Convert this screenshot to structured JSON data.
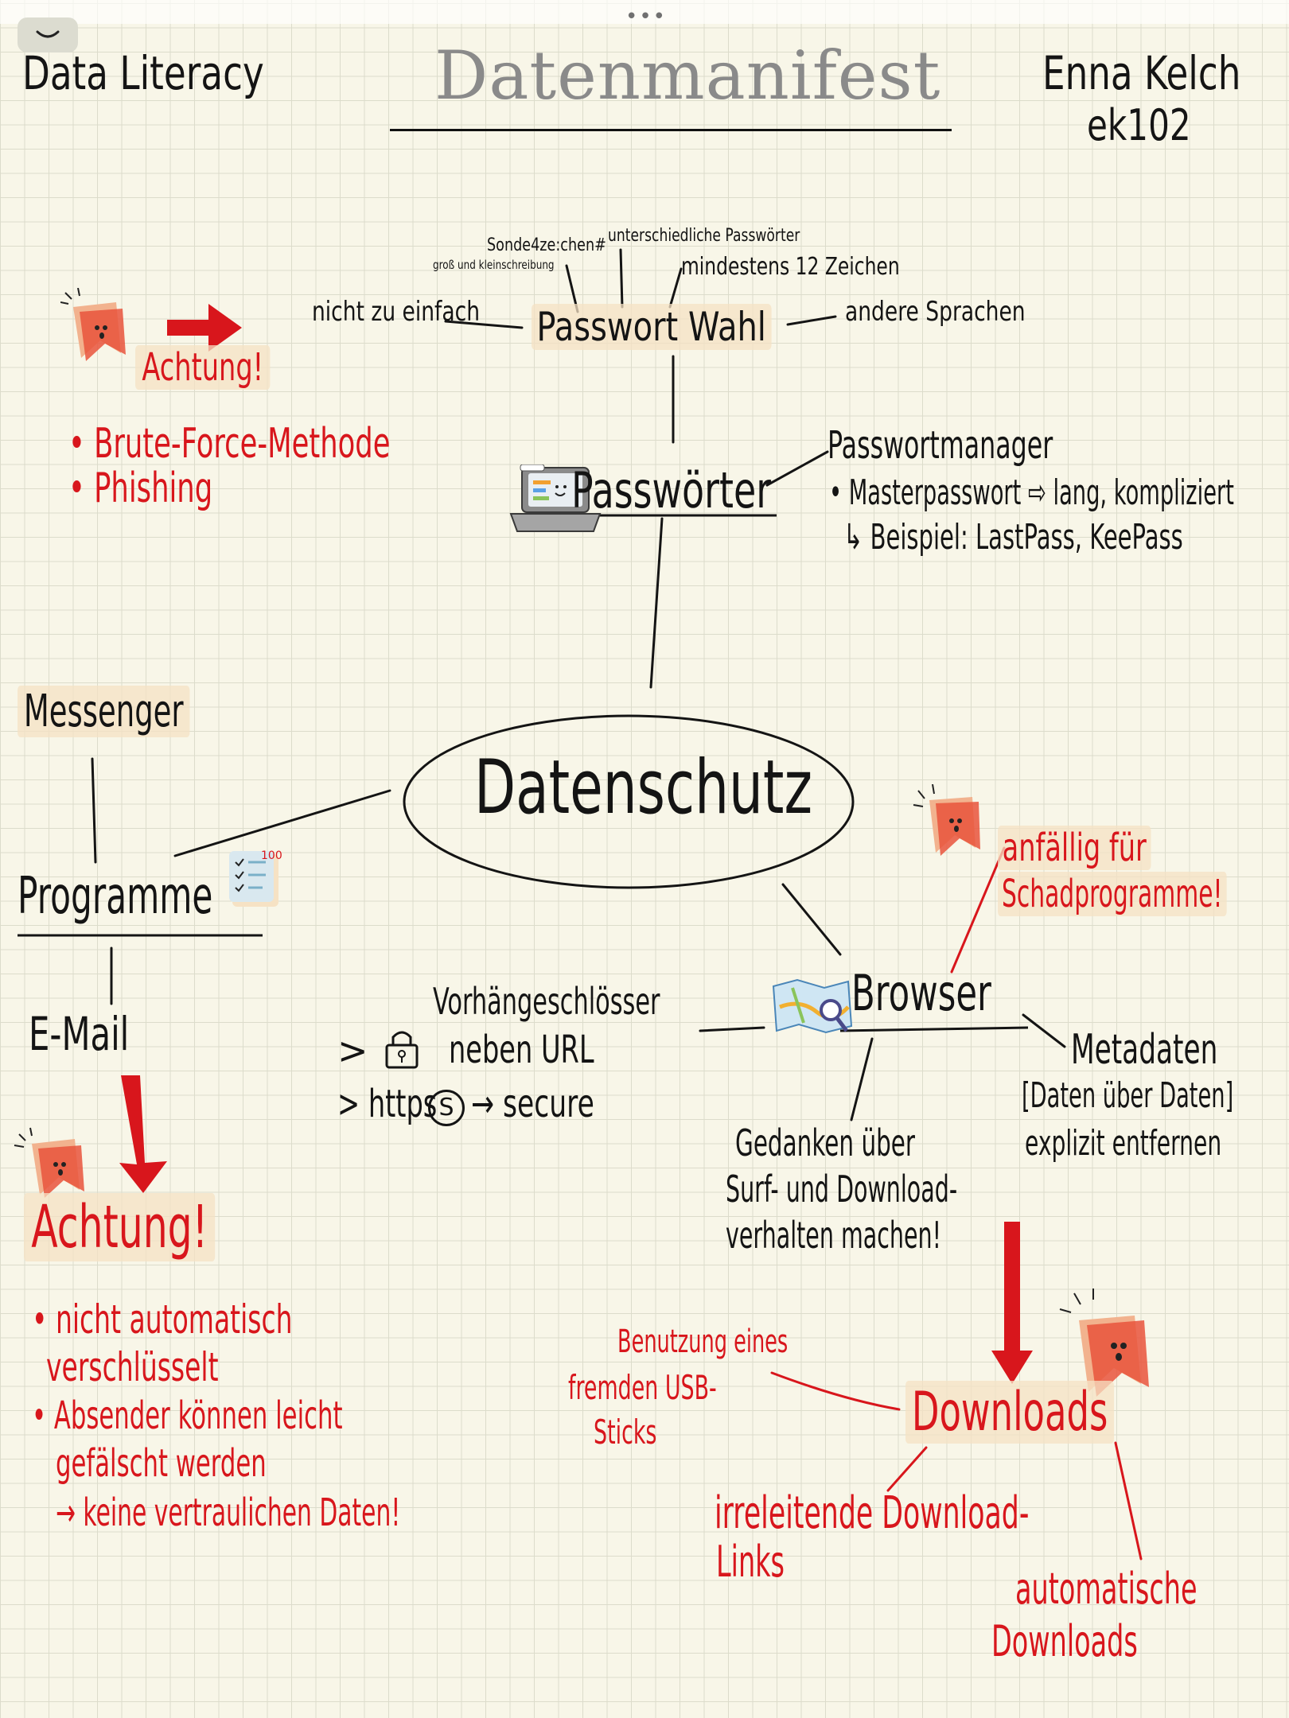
{
  "header": {
    "left": "Data Literacy",
    "title": "Datenmanifest",
    "author_name": "Enna Kelch",
    "author_id": "ek102"
  },
  "center": "Datenschutz",
  "passwort_wahl": {
    "label": "Passwort Wahl",
    "tips": [
      "Sonde4ze:chen#",
      "groß und kleinschreibung",
      "unterschiedliche Passwörter",
      "mindestens 12 Zeichen",
      "nicht zu einfach",
      "andere Sprachen"
    ]
  },
  "passwoerter": {
    "label": "Passwörter",
    "manager": "Passwortmanager",
    "master": "• Masterpasswort ⇨ lang, kompliziert",
    "example": "↳ Beispiel: LastPass, KeePass"
  },
  "warning_top": {
    "title": "Achtung!",
    "items": [
      "• Brute-Force-Methode",
      "• Phishing"
    ]
  },
  "programme": {
    "label": "Programme",
    "messenger": "Messenger",
    "email": "E-Mail"
  },
  "warning_email": {
    "title": "Achtung!",
    "items": [
      "• nicht automatisch",
      "verschlüsselt",
      "• Absender können leicht",
      "gefälscht werden",
      "→ keine vertraulichen Daten!"
    ]
  },
  "browser": {
    "label": "Browser",
    "warning": [
      "anfällig für",
      "Schadprogramme!"
    ],
    "locks": "Vorhängeschlösser",
    "lock_line": "neben URL",
    "https_prefix": "> https",
    "https_s": "S",
    "https_suffix": "→ secure",
    "metadata": "Metadaten",
    "metadata_def": "[Daten über Daten]",
    "metadata_action": "explizit entfernen",
    "thoughts": [
      "Gedanken über",
      "Surf- und Download-",
      "verhalten machen!"
    ]
  },
  "downloads": {
    "label": "Downloads",
    "usb": [
      "Benutzung eines",
      "fremden USB-",
      "Sticks"
    ],
    "misleading": [
      "irreleitende Download-",
      "Links"
    ],
    "automatic": [
      "automatische",
      "Downloads"
    ]
  },
  "colors": {
    "red": "#d8161c",
    "ink": "#141414",
    "highlight": "#f6e2c4",
    "title_gray": "#8a8a8a"
  }
}
